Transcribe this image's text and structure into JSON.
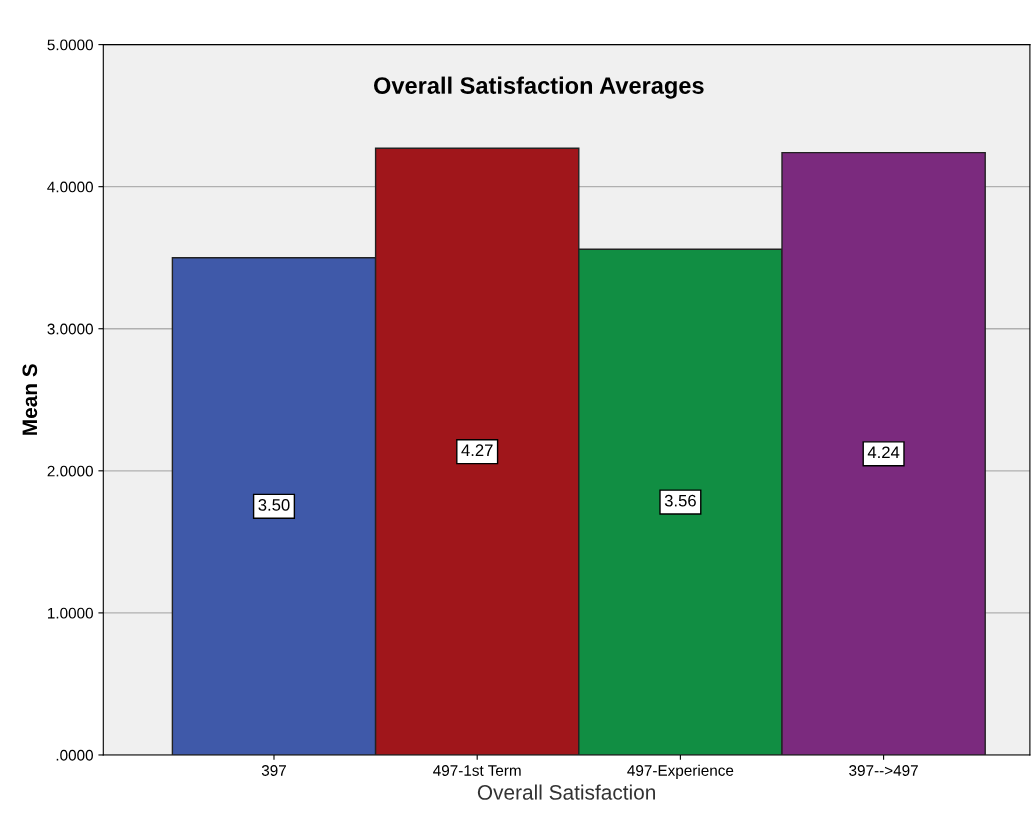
{
  "chart_data": {
    "type": "bar",
    "title": "Overall Satisfaction Averages",
    "xlabel": "Overall Satisfaction",
    "ylabel": "Mean S",
    "categories": [
      "397",
      "497-1st Term",
      "497-Experience",
      "397-->497"
    ],
    "values": [
      3.5,
      4.27,
      3.56,
      4.24
    ],
    "colors": [
      "#3f59a9",
      "#a0161b",
      "#118e43",
      "#7b2a7e"
    ],
    "ylim": [
      0,
      5
    ],
    "yticks": [
      {
        "value": 0,
        "label": ".0000"
      },
      {
        "value": 1,
        "label": "1.0000"
      },
      {
        "value": 2,
        "label": "2.0000"
      },
      {
        "value": 3,
        "label": "3.0000"
      },
      {
        "value": 4,
        "label": "4.0000"
      },
      {
        "value": 5,
        "label": "5.0000"
      }
    ],
    "value_labels": [
      "3.50",
      "4.27",
      "3.56",
      "4.24"
    ],
    "grid": "y"
  }
}
